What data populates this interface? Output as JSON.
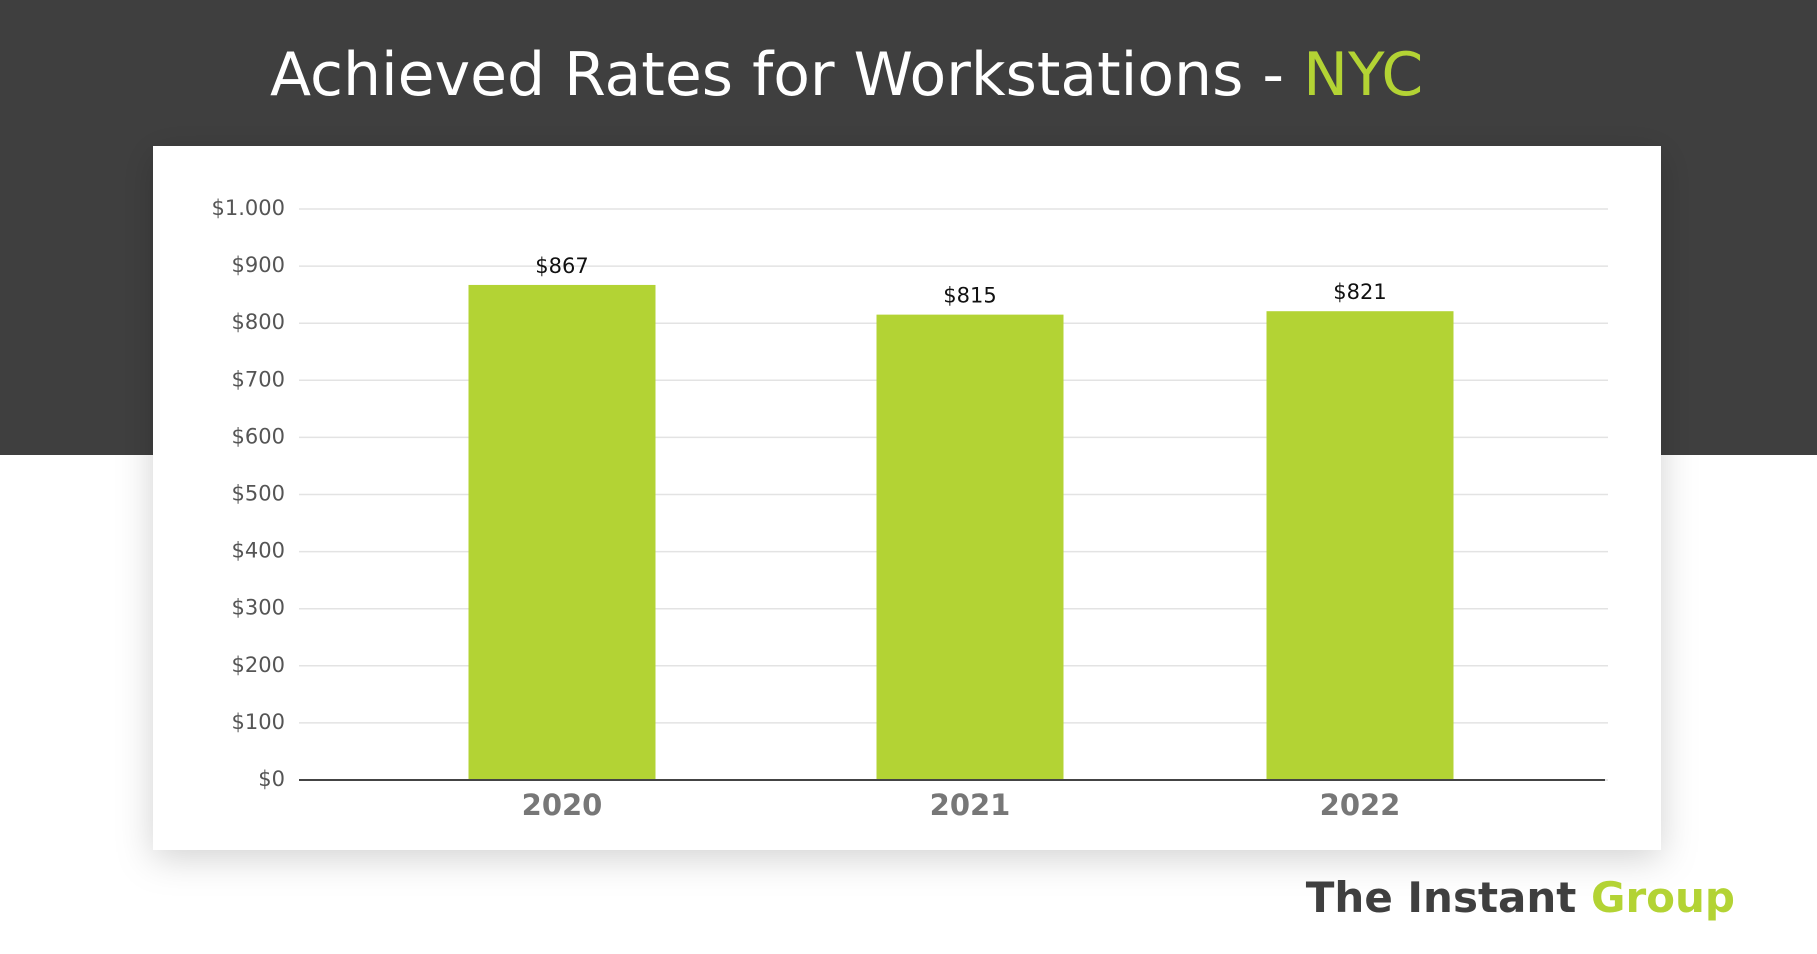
{
  "title": "Achieved Rates for Workstations -",
  "title_highlight": "NYC",
  "brand": {
    "name": "The Instant",
    "highlight": "Group"
  },
  "chart_data": {
    "type": "bar",
    "categories": [
      "2020",
      "2021",
      "2022"
    ],
    "values": [
      867,
      815,
      821
    ],
    "value_labels": [
      "$867",
      "$815",
      "$821"
    ],
    "color": "#b3d334",
    "ylim": [
      0,
      1000
    ],
    "yticks": [
      {
        "value": 0,
        "label": "$0"
      },
      {
        "value": 100,
        "label": "$100"
      },
      {
        "value": 200,
        "label": "$200"
      },
      {
        "value": 300,
        "label": "$300"
      },
      {
        "value": 400,
        "label": "$400"
      },
      {
        "value": 500,
        "label": "$500"
      },
      {
        "value": 600,
        "label": "$600"
      },
      {
        "value": 700,
        "label": "$700"
      },
      {
        "value": 800,
        "label": "$800"
      },
      {
        "value": 900,
        "label": "$900"
      },
      {
        "value": 1000,
        "label": "$1.000"
      }
    ],
    "grid": true
  }
}
